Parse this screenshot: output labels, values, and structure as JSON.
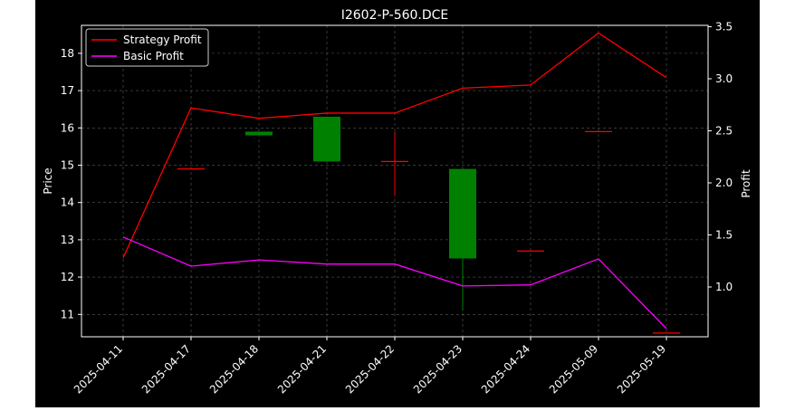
{
  "chart_data": {
    "type": "candlestick",
    "title": "I2602-P-560.DCE",
    "xlabel": "",
    "ylabel": "Price",
    "y2label": "Profit",
    "categories": [
      "2025-04-11",
      "2025-04-17",
      "2025-04-18",
      "2025-04-21",
      "2025-04-22",
      "2025-04-23",
      "2025-04-24",
      "2025-05-09",
      "2025-05-19"
    ],
    "ylim": [
      10.4,
      18.8
    ],
    "y2lim": [
      0.6,
      3.5
    ],
    "yticks": [
      "11",
      "12",
      "13",
      "14",
      "15",
      "16",
      "17",
      "18"
    ],
    "y2ticks": [
      "1.0",
      "1.5",
      "2.0",
      "2.5",
      "3.0",
      "3.5"
    ],
    "grid": true,
    "legend_position": "top-left",
    "candles": [
      {
        "date": "2025-04-11",
        "open": null,
        "high": null,
        "low": null,
        "close": null
      },
      {
        "date": "2025-04-17",
        "open": 14.9,
        "high": 14.9,
        "low": 14.9,
        "close": 14.9
      },
      {
        "date": "2025-04-18",
        "open": 15.9,
        "high": 15.9,
        "low": 15.8,
        "close": 15.8
      },
      {
        "date": "2025-04-21",
        "open": 16.3,
        "high": 16.3,
        "low": 15.1,
        "close": 15.1
      },
      {
        "date": "2025-04-22",
        "open": 15.1,
        "high": 15.9,
        "low": 14.2,
        "close": 15.1
      },
      {
        "date": "2025-04-23",
        "open": 14.9,
        "high": 14.9,
        "low": 11.1,
        "close": 12.5
      },
      {
        "date": "2025-04-24",
        "open": 12.7,
        "high": 12.7,
        "low": 12.7,
        "close": 12.7
      },
      {
        "date": "2025-05-09",
        "open": 15.9,
        "high": 15.9,
        "low": 15.9,
        "close": 15.9
      },
      {
        "date": "2025-05-19",
        "open": 10.5,
        "high": 10.5,
        "low": 10.5,
        "close": 10.5
      }
    ],
    "series": [
      {
        "name": "Strategy Profit",
        "axis": "right",
        "color": "#ff0000",
        "values": [
          1.28,
          2.72,
          2.62,
          2.67,
          2.67,
          2.91,
          2.94,
          3.44,
          3.01
        ]
      },
      {
        "name": "Basic Profit",
        "axis": "right",
        "color": "#ff00ff",
        "values": [
          1.48,
          1.2,
          1.26,
          1.22,
          1.22,
          1.01,
          1.02,
          1.27,
          0.6
        ]
      }
    ],
    "colors": {
      "up": "#ff0000",
      "down": "#008000",
      "background": "#000000",
      "grid": "#808080"
    }
  }
}
